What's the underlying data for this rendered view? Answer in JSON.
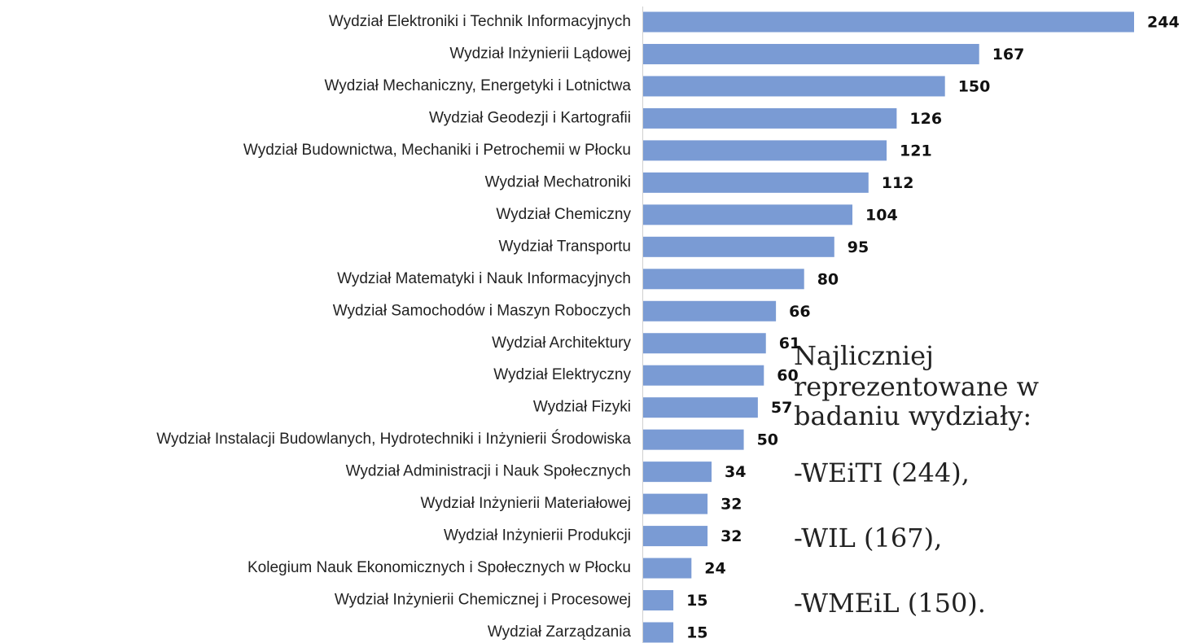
{
  "chart_data": {
    "type": "bar",
    "orientation": "horizontal",
    "color": "#7a9bd4",
    "categories": [
      "Wydział Elektroniki i Technik Informacyjnych",
      "Wydział Inżynierii Lądowej",
      "Wydział Mechaniczny, Energetyki i Lotnictwa",
      "Wydział Geodezji i Kartografii",
      "Wydział Budownictwa, Mechaniki i Petrochemii w Płocku",
      "Wydział Mechatroniki",
      "Wydział Chemiczny",
      "Wydział Transportu",
      "Wydział Matematyki i Nauk Informacyjnych",
      "Wydział Samochodów i Maszyn Roboczych",
      "Wydział Architektury",
      "Wydział Elektryczny",
      "Wydział Fizyki",
      "Wydział Instalacji Budowlanych, Hydrotechniki i Inżynierii Środowiska",
      "Wydział Administracji i Nauk Społecznych",
      "Wydział Inżynierii Materiałowej",
      "Wydział Inżynierii Produkcji",
      "Kolegium Nauk Ekonomicznych i Społecznych w Płocku",
      "Wydział Inżynierii Chemicznej i Procesowej",
      "Wydział Zarządzania"
    ],
    "values": [
      244,
      167,
      150,
      126,
      121,
      112,
      104,
      95,
      80,
      66,
      61,
      60,
      57,
      50,
      34,
      32,
      32,
      24,
      15,
      15
    ]
  },
  "annotation": {
    "heading": [
      "Najliczniej",
      "reprezentowane w",
      "badaniu wydziały:"
    ],
    "items": [
      "-WEiTI (244),",
      "-WIL (167),",
      "-WMEiL (150)."
    ]
  }
}
